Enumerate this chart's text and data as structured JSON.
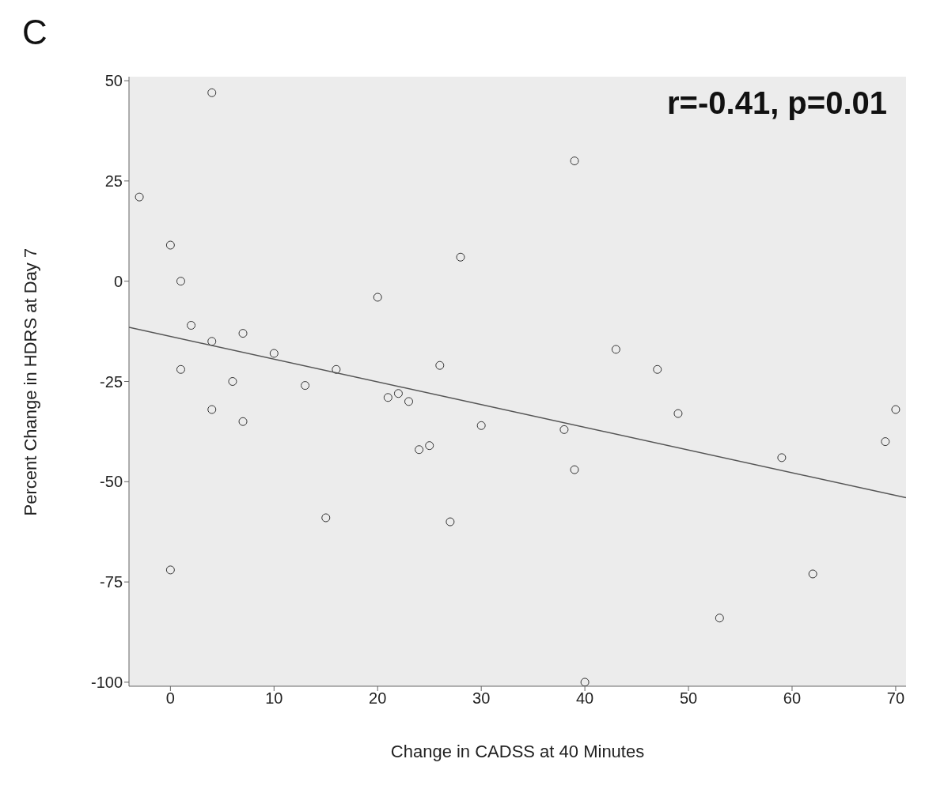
{
  "chart_data": {
    "type": "scatter",
    "xlabel": "Change in CADSS at 40 Minutes",
    "ylabel": "Percent Change in HDRS at Day 7",
    "annotations": [
      "C",
      "r=-0.41, p=0.01"
    ],
    "xlim": [
      -4,
      71
    ],
    "xticks": [
      0,
      10,
      20,
      30,
      40,
      50,
      60,
      70
    ],
    "ylim": [
      -101,
      51
    ],
    "yticks": [
      50,
      25,
      0,
      -25,
      -50,
      -75,
      -100
    ],
    "grid": false,
    "marker": "circle",
    "series": [
      {
        "color": "#333333",
        "x": [
          -3,
          0,
          1,
          0,
          1,
          2,
          4,
          4,
          4,
          6,
          7,
          7,
          10,
          13,
          15,
          16,
          20,
          21,
          22,
          23,
          24,
          25,
          26,
          27,
          28,
          30,
          38,
          39,
          39,
          40,
          43,
          47,
          49,
          53,
          59,
          62,
          69,
          70
        ],
        "values": [
          21,
          9,
          0,
          -72,
          -22,
          -11,
          47,
          -15,
          -32,
          -25,
          -13,
          -35,
          -18,
          -26,
          -59,
          -22,
          -4,
          -29,
          -28,
          -30,
          -42,
          -41,
          -21,
          -60,
          6,
          -36,
          -37,
          30,
          -47,
          -100,
          -17,
          -22,
          -33,
          -84,
          -44,
          -73,
          -40,
          -32
        ]
      },
      {
        "type": "line",
        "color": "#555555",
        "marker": "none",
        "x": [
          -4,
          71
        ],
        "values": [
          -11.5,
          -54
        ]
      }
    ]
  }
}
